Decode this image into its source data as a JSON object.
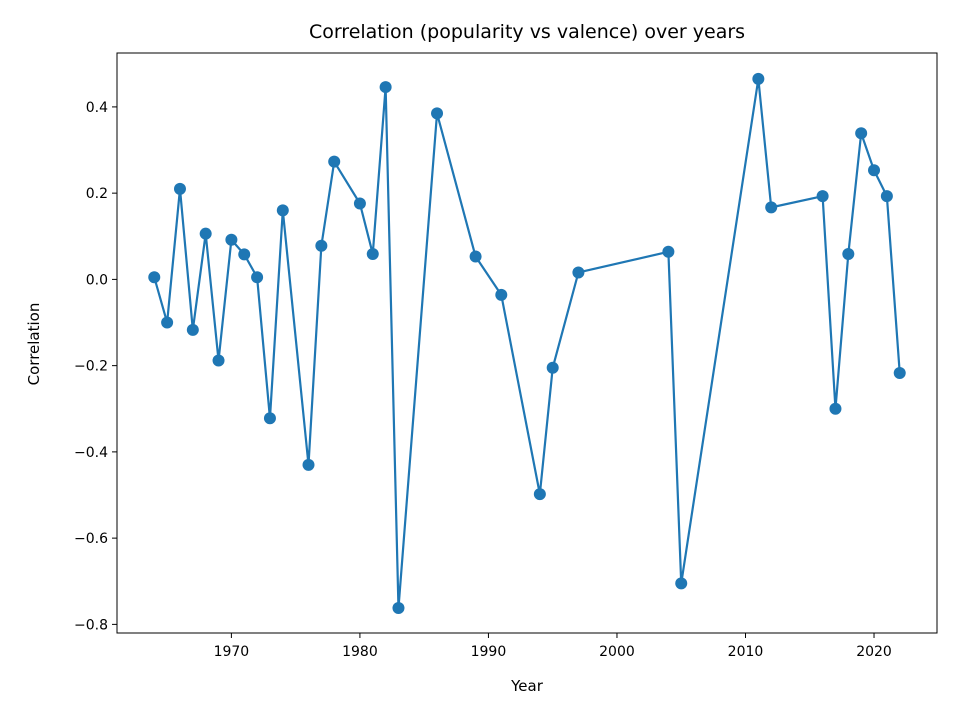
{
  "chart_data": {
    "type": "line",
    "title": "Correlation (popularity vs valence) over years",
    "xlabel": "Year",
    "ylabel": "Correlation",
    "xlim": [
      1961.1,
      2024.9
    ],
    "ylim": [
      -0.82,
      0.525
    ],
    "xticks": [
      1970,
      1980,
      1990,
      2000,
      2010,
      2020
    ],
    "yticks": [
      -0.8,
      -0.6,
      -0.4,
      -0.2,
      0.0,
      0.2,
      0.4
    ],
    "ytick_labels": [
      "−0.8",
      "−0.6",
      "−0.4",
      "−0.2",
      "0.0",
      "0.2",
      "0.4"
    ],
    "grid": false,
    "legend": "none",
    "series": [
      {
        "color": "#1f77b4",
        "marker": "circle",
        "x": [
          1964,
          1965,
          1966,
          1967,
          1968,
          1969,
          1970,
          1971,
          1972,
          1973,
          1974,
          1976,
          1977,
          1978,
          1980,
          1981,
          1982,
          1983,
          1986,
          1989,
          1991,
          1994,
          1995,
          1997,
          2004,
          2005,
          2011,
          2012,
          2016,
          2017,
          2018,
          2019,
          2020,
          2021,
          2022
        ],
        "y": [
          0.005,
          -0.1,
          0.21,
          -0.117,
          0.106,
          -0.188,
          0.092,
          0.058,
          0.005,
          -0.322,
          0.16,
          -0.43,
          0.078,
          0.273,
          0.176,
          0.059,
          0.446,
          -0.762,
          0.385,
          0.053,
          -0.036,
          -0.498,
          -0.205,
          0.016,
          0.064,
          -0.705,
          0.465,
          0.167,
          0.193,
          -0.3,
          0.059,
          0.339,
          0.253,
          0.193,
          -0.217
        ]
      }
    ]
  }
}
